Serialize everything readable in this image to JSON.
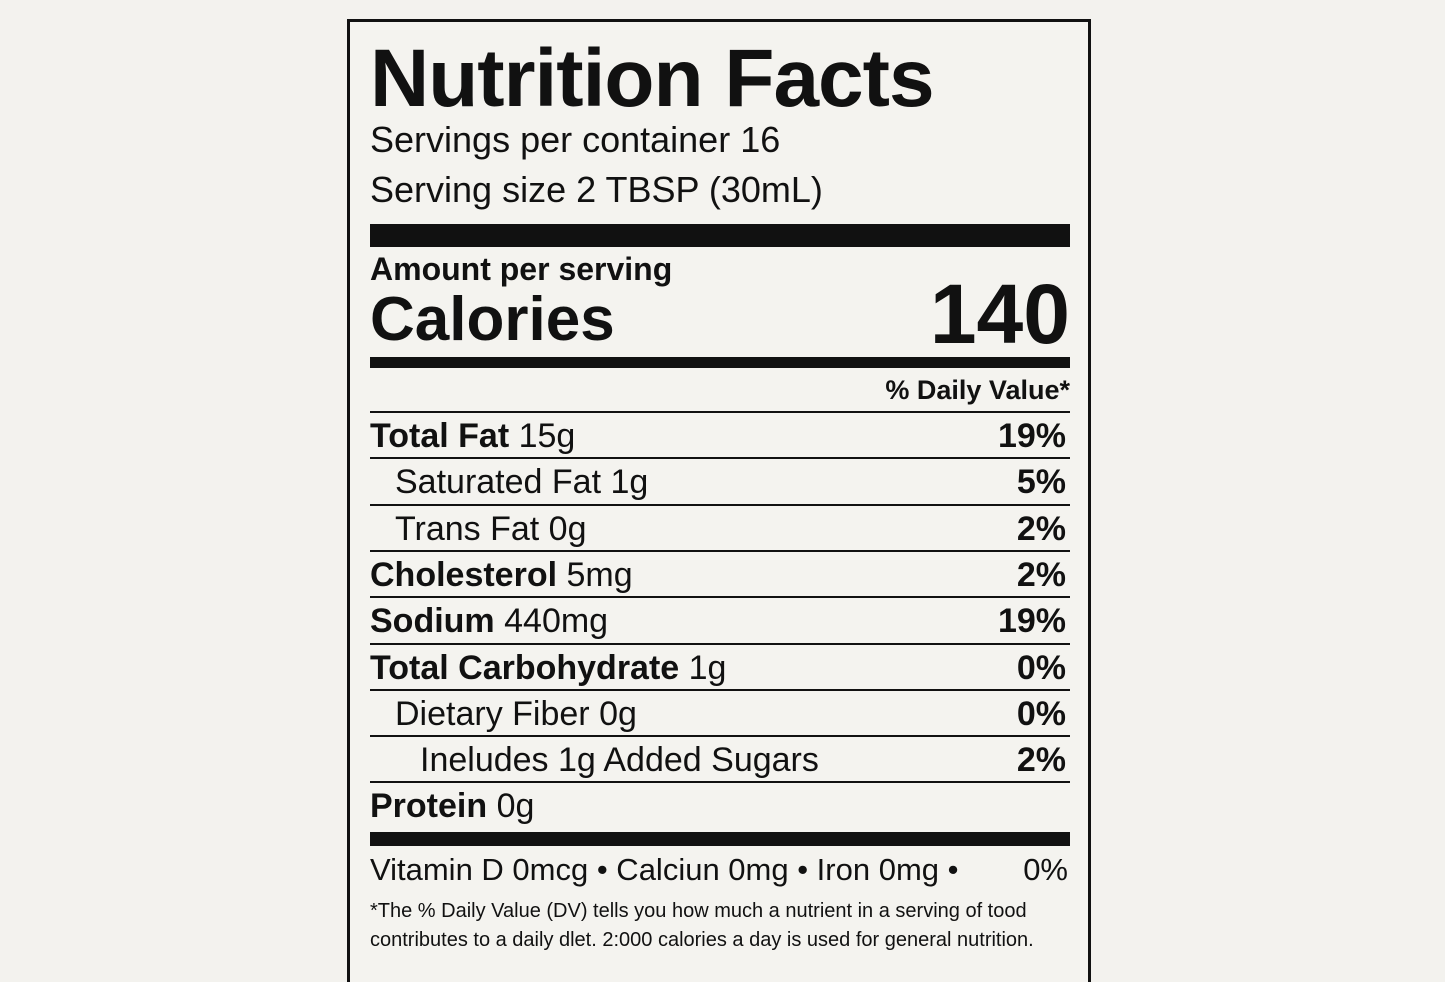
{
  "title": "Nutrition Facts",
  "servings": "Servings per container 16",
  "serving_size": "Serving size 2 TBSP (30mL)",
  "amount_per_serving": "Amount per serving",
  "calories_label": "Calories",
  "calories_value": "140",
  "daily_value_header": "% Daily Value*",
  "rows": [
    {
      "name": "Total Fat",
      "amount": "15g",
      "dv": "19%",
      "bold": true,
      "indent": 0
    },
    {
      "name": "Saturated Fat",
      "amount": "1g",
      "dv": "5%",
      "bold": false,
      "indent": 1
    },
    {
      "name": "Trans Fat",
      "amount": "0g",
      "dv": "2%",
      "bold": false,
      "indent": 1
    },
    {
      "name": "Cholesterol",
      "amount": "5mg",
      "dv": "2%",
      "bold": true,
      "indent": 0
    },
    {
      "name": "Sodium",
      "amount": "440mg",
      "dv": "19%",
      "bold": true,
      "indent": 0
    },
    {
      "name": "Total Carbohydrate",
      "amount": "1g",
      "dv": "0%",
      "bold": true,
      "indent": 0
    },
    {
      "name": "Dietary Fiber",
      "amount": "0g",
      "dv": "0%",
      "bold": false,
      "indent": 1
    },
    {
      "name": "Ineludes 1g Added Sugars",
      "amount": "",
      "dv": "2%",
      "bold": false,
      "indent": 2
    },
    {
      "name": "Protein",
      "amount": "0g",
      "dv": "",
      "bold": true,
      "indent": 0
    }
  ],
  "vitamins": "Vitamin D 0mcg • Calciun 0mg • Iron 0mg •",
  "vitamins_dv": "0%",
  "footnote_1": "*The % Daily Value (DV) tells you how much a nutrient in a serving of tood",
  "footnote_2": "contributes to a daily dlet. 2:000 calories a day is used for general nutrition."
}
